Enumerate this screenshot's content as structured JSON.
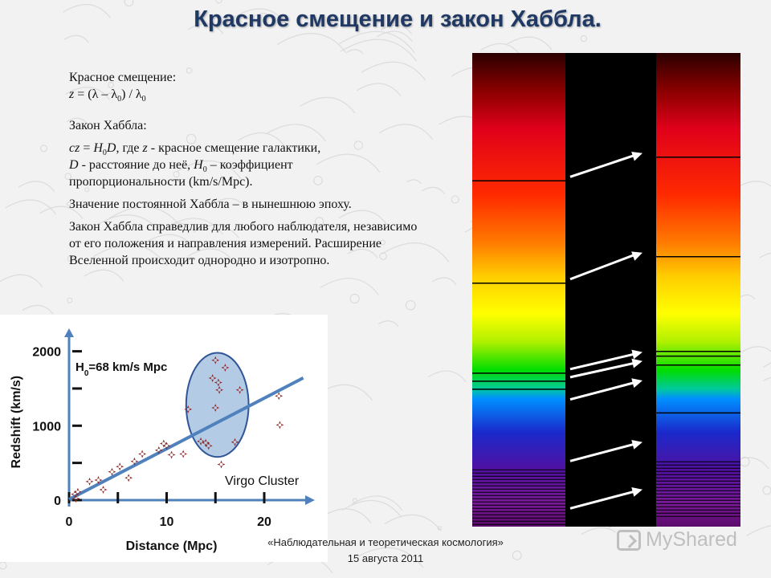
{
  "slide": {
    "title": "Красное смещение и закон Хаббла.",
    "footer": {
      "line1": "«Наблюдательная и теоретическая космология»",
      "line2": "15 августа 2011"
    },
    "logo": {
      "text": "MyShared",
      "icon": "mycross-logo-icon"
    }
  },
  "text": {
    "redshift_label": "Красное смещение:",
    "formula": {
      "z": "z",
      "eq": " = (",
      "lambda": "λ",
      "minus": " – ",
      "lambda0": "λ",
      "sub0": "0",
      "close": ") / ",
      "lambda0b": "λ",
      "sub0b": "0"
    },
    "hubble_label": "Закон Хаббла:",
    "law": {
      "cz": "cz",
      "eq": " = ",
      "H": "H",
      "sub0": "0",
      "D": "D",
      "rest1": ", где ",
      "z": "z",
      "rest2": " - красное смещение галактики,",
      "D2": "D",
      "rest3": " - расстояние до неё, ",
      "H2": "H",
      "sub0b": "0",
      "rest4": " – коэффициент",
      "rest5": "пропорциональности (km/s/Mpc)."
    },
    "constant": "Значение постоянной Хаббла – в нынешнюю эпоху.",
    "validity": "Закон Хаббла справедлив для любого наблюдателя, независимо  от его положения и направления измерений. Расширение Вселенной происходит однородно и изотропно."
  },
  "chart_data": {
    "type": "scatter",
    "title": "",
    "xlabel": "Distance (Mpc)",
    "ylabel": "Redshift (km/s)",
    "xlim": [
      0,
      25
    ],
    "ylim": [
      0,
      2200
    ],
    "xticks_labeled": [
      0,
      10,
      20
    ],
    "xticks_minor": [
      5,
      15
    ],
    "yticks_labeled": [
      0,
      1000,
      2000
    ],
    "yticks_minor": [
      500,
      1500
    ],
    "annotation_h0": {
      "H": "H",
      "sub": "0",
      "rest": "=68 km/s Mpc"
    },
    "annotation_cluster": "Virgo Cluster",
    "fit_line": {
      "slope": 68,
      "intercept": 10,
      "x_range": [
        0,
        24
      ]
    },
    "ellipse": {
      "cx": 15.2,
      "cy": 1280,
      "rx": 3.2,
      "ry": 700
    },
    "points": [
      [
        0.6,
        80
      ],
      [
        0.7,
        20
      ],
      [
        0.9,
        110
      ],
      [
        2.1,
        250
      ],
      [
        3.0,
        270
      ],
      [
        3.5,
        140
      ],
      [
        4.4,
        380
      ],
      [
        5.2,
        450
      ],
      [
        6.1,
        300
      ],
      [
        6.7,
        520
      ],
      [
        7.5,
        620
      ],
      [
        9.2,
        670
      ],
      [
        9.7,
        760
      ],
      [
        10.0,
        730
      ],
      [
        10.5,
        610
      ],
      [
        11.7,
        620
      ],
      [
        12.2,
        1220
      ],
      [
        13.5,
        790
      ],
      [
        14.0,
        770
      ],
      [
        14.3,
        730
      ],
      [
        14.7,
        1640
      ],
      [
        15.0,
        1880
      ],
      [
        15.0,
        1240
      ],
      [
        15.3,
        1580
      ],
      [
        15.4,
        1480
      ],
      [
        15.6,
        480
      ],
      [
        16.0,
        1780
      ],
      [
        17.0,
        780
      ],
      [
        17.5,
        1480
      ],
      [
        21.5,
        1400
      ],
      [
        21.6,
        1010
      ]
    ]
  },
  "spectra": {
    "lab_lines": [
      0.27,
      0.486,
      0.676,
      0.693,
      0.71
    ],
    "shifted_lines": [
      0.22,
      0.43,
      0.63,
      0.64,
      0.659,
      0.76
    ],
    "violet_bands_start": 0.88,
    "arrows": [
      {
        "from": 0.27,
        "to": 0.22
      },
      {
        "from": 0.486,
        "to": 0.43
      },
      {
        "from": 0.676,
        "to": 0.64
      },
      {
        "from": 0.693,
        "to": 0.659
      },
      {
        "from": 0.74,
        "to": 0.7
      },
      {
        "from": 0.87,
        "to": 0.83
      },
      {
        "from": 0.97,
        "to": 0.93
      }
    ]
  }
}
